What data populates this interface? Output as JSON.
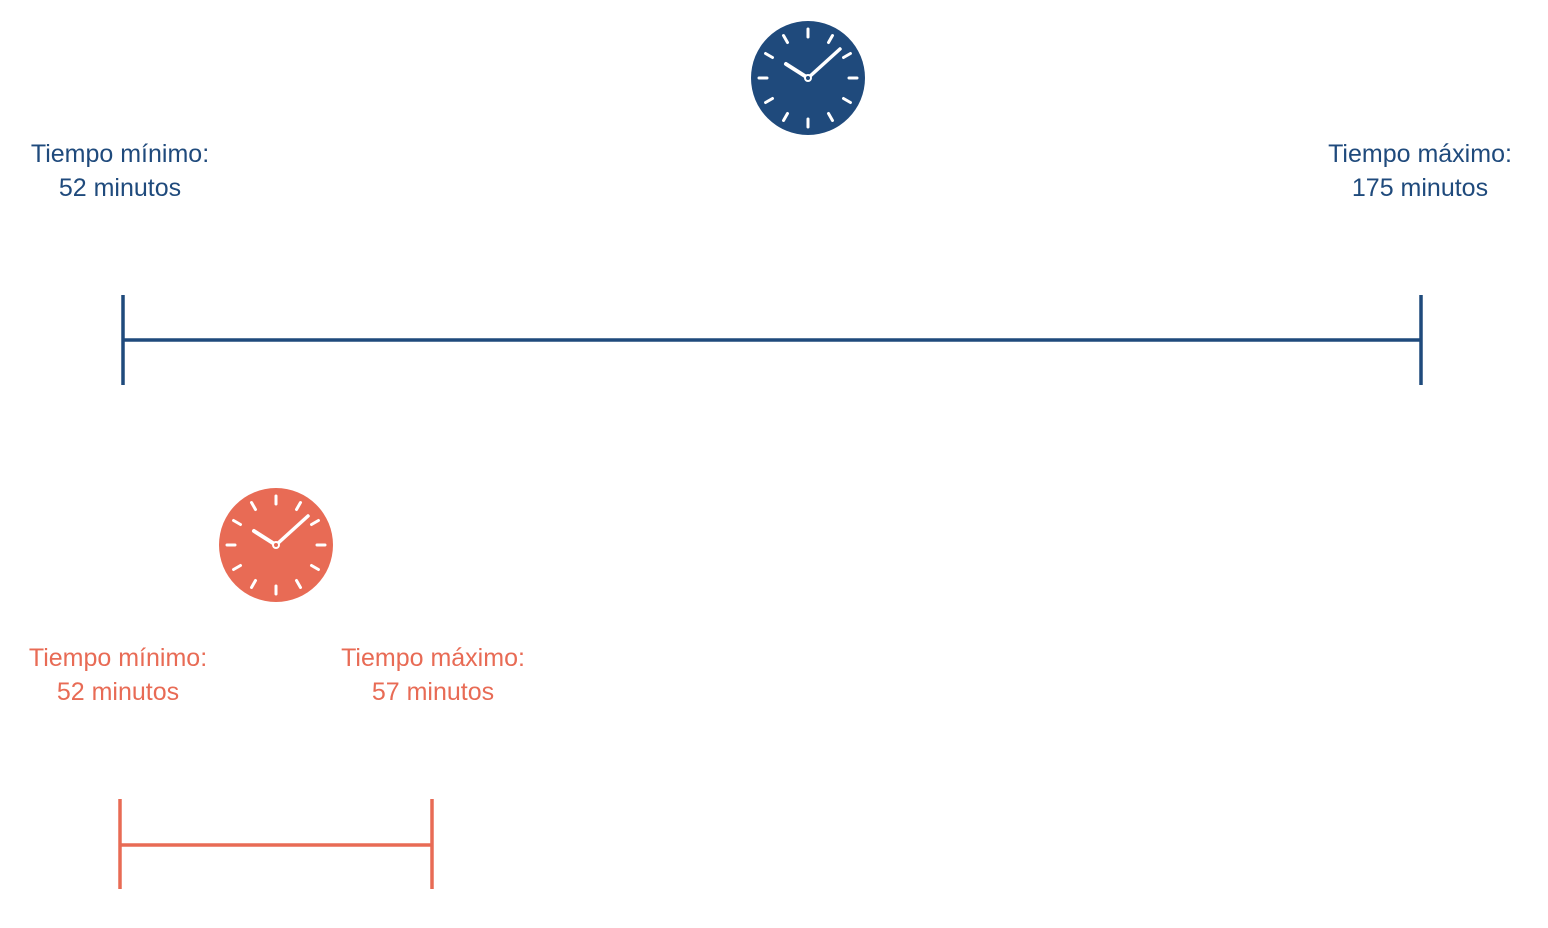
{
  "colors": {
    "blue": "#1f4a7c",
    "coral": "#e86b55",
    "clock_face_detail": "#ffffff"
  },
  "ranges": [
    {
      "id": "range-blue",
      "color": "#1f4a7c",
      "icon": "clock-icon",
      "min": {
        "label": "Tiempo mínimo:",
        "value": "52 minutos",
        "minutes": 52
      },
      "max": {
        "label": "Tiempo máximo:",
        "value": "175 minutos",
        "minutes": 175
      }
    },
    {
      "id": "range-coral",
      "color": "#e86b55",
      "icon": "clock-icon",
      "min": {
        "label": "Tiempo mínimo:",
        "value": "52 minutos",
        "minutes": 52
      },
      "max": {
        "label": "Tiempo máximo:",
        "value": "57 minutos",
        "minutes": 57
      }
    }
  ]
}
